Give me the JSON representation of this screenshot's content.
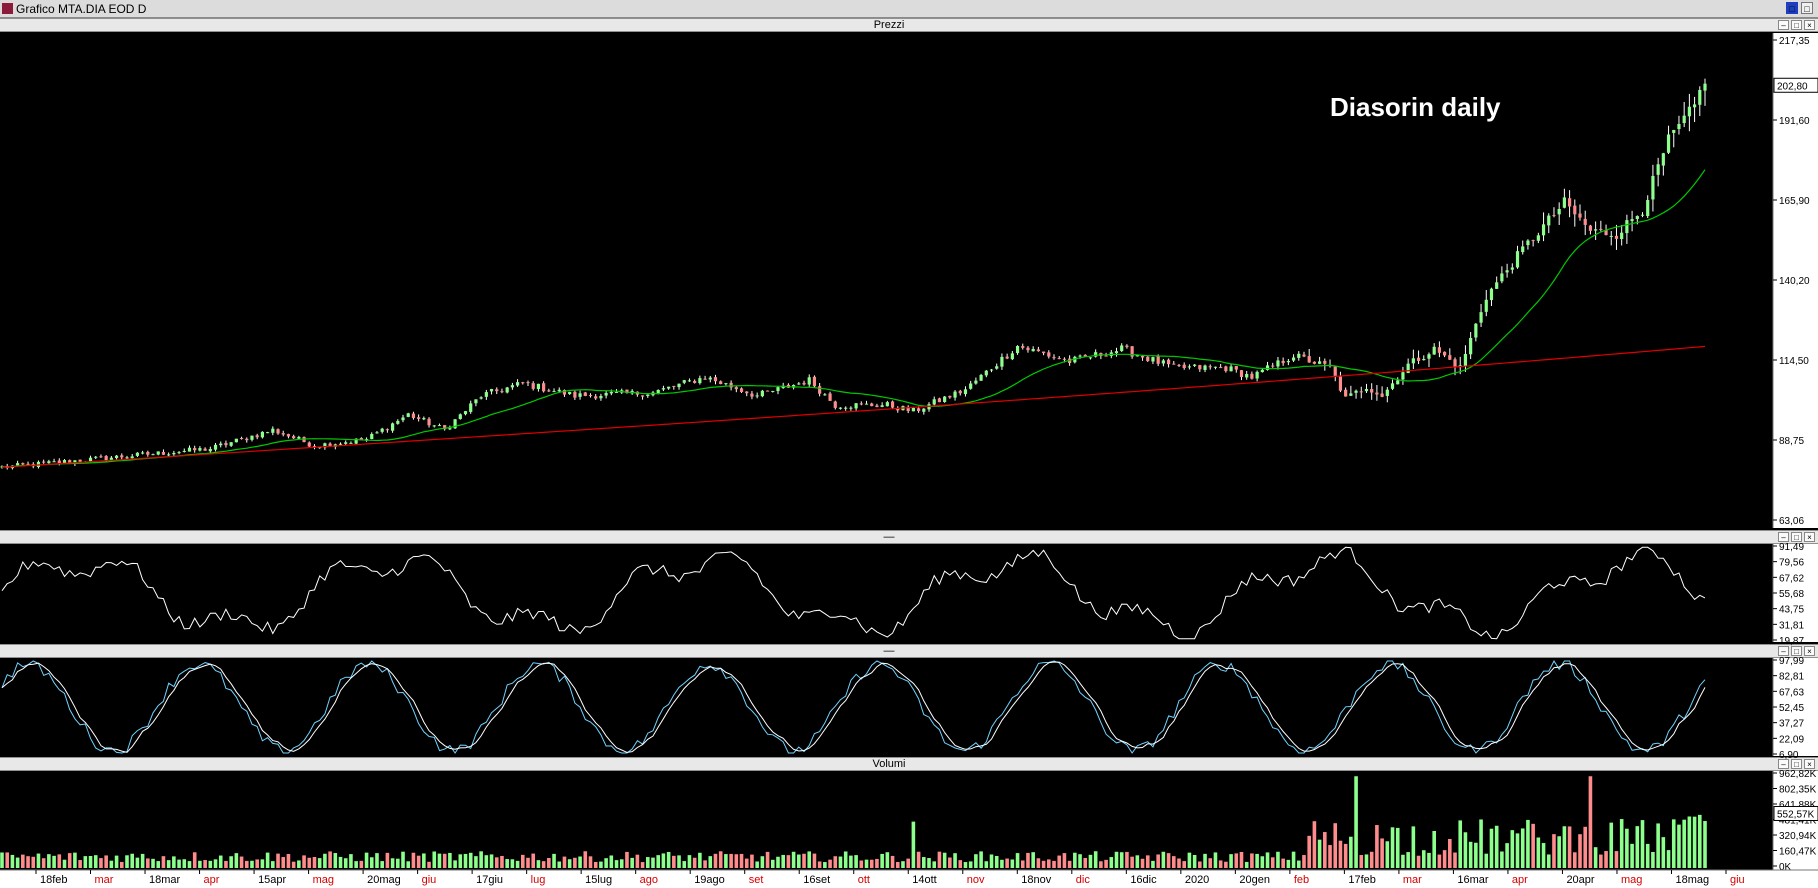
{
  "window": {
    "title": "Grafico MTA.DIA EOD D",
    "buttons": [
      "□",
      "□",
      "×"
    ]
  },
  "panels": {
    "prices_title": "Prezzi",
    "osc1_title": "—",
    "osc2_title": "—",
    "volume_title": "Volumi",
    "panel_buttons": [
      "–",
      "□",
      "×"
    ]
  },
  "annotation": "Diasorin daily",
  "chart_data": [
    {
      "panel": "Prezzi",
      "type": "candlestick",
      "title": "Diasorin daily",
      "ylim": [
        63.06,
        217.35
      ],
      "y_ticks": [
        "217,35",
        "191,60",
        "165,90",
        "140,20",
        "114,50",
        "88,75",
        "63,06"
      ],
      "last_value_label": "202,80",
      "x_labels": [
        {
          "text": "18feb",
          "color": "black"
        },
        {
          "text": "mar",
          "color": "red"
        },
        {
          "text": "18mar",
          "color": "black"
        },
        {
          "text": "apr",
          "color": "red"
        },
        {
          "text": "15apr",
          "color": "black"
        },
        {
          "text": "mag",
          "color": "red"
        },
        {
          "text": "20mag",
          "color": "black"
        },
        {
          "text": "giu",
          "color": "red"
        },
        {
          "text": "17giu",
          "color": "black"
        },
        {
          "text": "lug",
          "color": "red"
        },
        {
          "text": "15lug",
          "color": "black"
        },
        {
          "text": "ago",
          "color": "red"
        },
        {
          "text": "19ago",
          "color": "black"
        },
        {
          "text": "set",
          "color": "red"
        },
        {
          "text": "16set",
          "color": "black"
        },
        {
          "text": "ott",
          "color": "red"
        },
        {
          "text": "14ott",
          "color": "black"
        },
        {
          "text": "nov",
          "color": "red"
        },
        {
          "text": "18nov",
          "color": "black"
        },
        {
          "text": "dic",
          "color": "red"
        },
        {
          "text": "16dic",
          "color": "black"
        },
        {
          "text": "2020",
          "color": "black"
        },
        {
          "text": "20gen",
          "color": "black"
        },
        {
          "text": "feb",
          "color": "red"
        },
        {
          "text": "17feb",
          "color": "black"
        },
        {
          "text": "mar",
          "color": "red"
        },
        {
          "text": "16mar",
          "color": "black"
        },
        {
          "text": "apr",
          "color": "red"
        },
        {
          "text": "20apr",
          "color": "black"
        },
        {
          "text": "mag",
          "color": "red"
        },
        {
          "text": "18mag",
          "color": "black"
        },
        {
          "text": "giu",
          "color": "red"
        }
      ],
      "close_anchors": [
        [
          0,
          80
        ],
        [
          20,
          83
        ],
        [
          40,
          86
        ],
        [
          52,
          92
        ],
        [
          60,
          87
        ],
        [
          70,
          89
        ],
        [
          78,
          97
        ],
        [
          85,
          92
        ],
        [
          92,
          103
        ],
        [
          100,
          107
        ],
        [
          110,
          103
        ],
        [
          125,
          104
        ],
        [
          135,
          109
        ],
        [
          145,
          103
        ],
        [
          155,
          108
        ],
        [
          160,
          100
        ],
        [
          170,
          100
        ],
        [
          175,
          98
        ],
        [
          185,
          105
        ],
        [
          195,
          119
        ],
        [
          205,
          114
        ],
        [
          215,
          118
        ],
        [
          225,
          112
        ],
        [
          235,
          112
        ],
        [
          240,
          109
        ],
        [
          248,
          116
        ],
        [
          255,
          112
        ],
        [
          258,
          102
        ],
        [
          262,
          106
        ],
        [
          265,
          103
        ],
        [
          270,
          113
        ],
        [
          275,
          118
        ],
        [
          280,
          112
        ],
        [
          285,
          135
        ],
        [
          292,
          150
        ],
        [
          300,
          165
        ],
        [
          305,
          156
        ],
        [
          310,
          155
        ],
        [
          315,
          163
        ],
        [
          320,
          185
        ],
        [
          325,
          196
        ],
        [
          327,
          205
        ]
      ],
      "volatility": 0.014,
      "moving_averages": [
        {
          "period": 20,
          "color": "#00c800"
        },
        {
          "period": 200,
          "color": "#e00000"
        }
      ]
    },
    {
      "panel": "oscillator-1",
      "type": "line",
      "ylim": [
        19.87,
        91.49
      ],
      "y_ticks": [
        "91,49",
        "79,56",
        "67,62",
        "55,68",
        "43,75",
        "31,81",
        "19,87"
      ],
      "series": [
        {
          "color": "#ffffff"
        }
      ]
    },
    {
      "panel": "oscillator-2",
      "type": "line",
      "ylim": [
        6.9,
        97.99
      ],
      "y_ticks": [
        "97,99",
        "82,81",
        "67,63",
        "52,45",
        "37,27",
        "22,09",
        "6,90"
      ],
      "series": [
        {
          "color": "#6fd3ff"
        },
        {
          "color": "#ffffff"
        }
      ]
    },
    {
      "panel": "Volumi",
      "type": "bar",
      "ylim": [
        0,
        962820
      ],
      "y_ticks": [
        "962,82K",
        "802,35K",
        "641,88K",
        "481,41K",
        "320,94K",
        "160,47K",
        "0K"
      ],
      "last_value_label": "552,57K"
    }
  ]
}
